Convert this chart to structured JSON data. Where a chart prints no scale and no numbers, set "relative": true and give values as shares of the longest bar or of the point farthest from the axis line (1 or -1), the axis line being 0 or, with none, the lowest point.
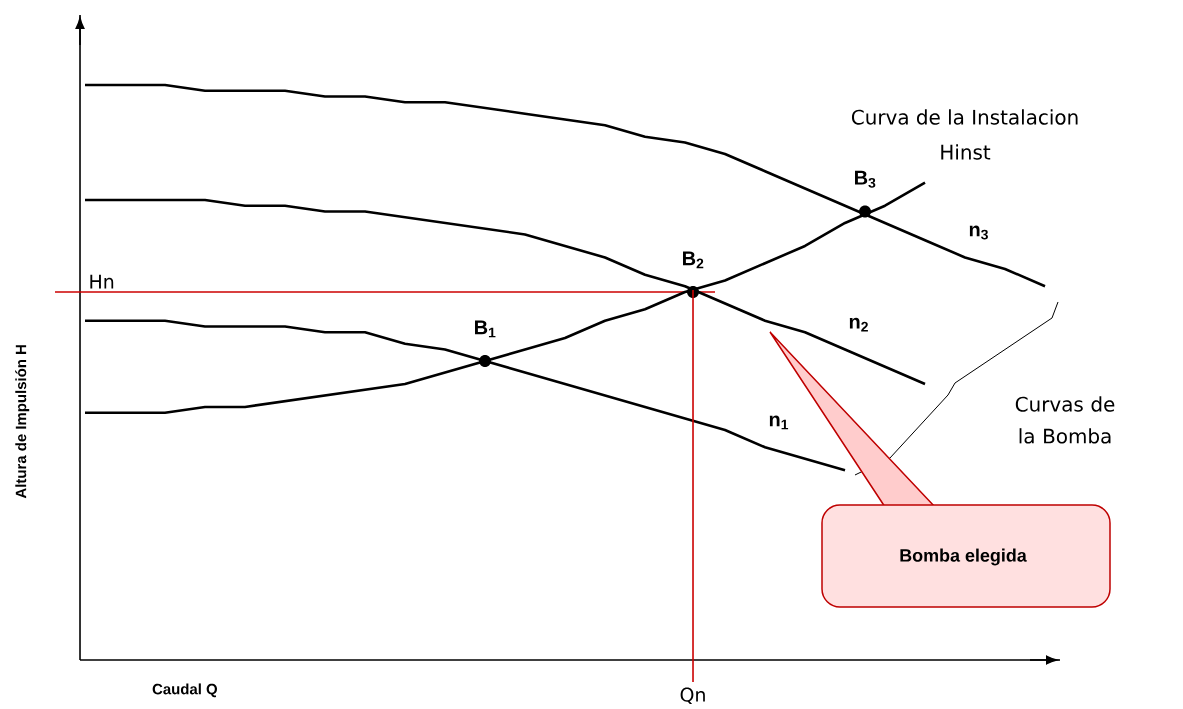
{
  "chart_data": {
    "type": "line",
    "relative": true,
    "xlabel": "Caudal Q",
    "ylabel": "Altura de Impulsión H",
    "tick_labels": false,
    "categories": [
      null,
      null,
      null,
      null,
      null,
      null,
      null,
      null,
      null,
      null,
      null,
      null,
      null,
      null,
      null,
      null,
      null,
      null,
      null,
      null,
      null,
      null,
      null,
      null,
      null
    ],
    "series": [
      {
        "name": "n$_{1}$",
        "color": "#000000",
        "values": [
          0.59,
          0.59,
          0.59,
          0.58,
          0.58,
          0.58,
          0.57,
          0.57,
          0.55,
          0.54,
          0.52,
          0.5,
          0.48,
          0.46,
          0.44,
          0.42,
          0.4,
          0.37,
          0.35,
          0.33,
          null,
          null,
          null,
          null,
          null
        ]
      },
      {
        "name": "n$_{2}$",
        "color": "#000000",
        "values": [
          0.8,
          0.8,
          0.8,
          0.8,
          0.79,
          0.79,
          0.78,
          0.78,
          0.77,
          0.76,
          0.75,
          0.74,
          0.72,
          0.7,
          0.67,
          0.65,
          0.62,
          0.59,
          0.57,
          0.54,
          0.51,
          0.48,
          null,
          null,
          null
        ]
      },
      {
        "name": "n$_{3}$",
        "color": "#000000",
        "values": [
          1.0,
          1.0,
          1.0,
          0.99,
          0.99,
          0.99,
          0.98,
          0.98,
          0.97,
          0.97,
          0.96,
          0.95,
          0.94,
          0.93,
          0.91,
          0.9,
          0.88,
          0.85,
          0.82,
          0.79,
          0.76,
          0.73,
          0.7,
          0.68,
          0.65
        ]
      },
      {
        "color": "#000000",
        "values": [
          0.43,
          0.43,
          0.43,
          0.44,
          0.44,
          0.45,
          0.46,
          0.47,
          0.48,
          0.5,
          0.52,
          0.54,
          0.56,
          0.59,
          0.61,
          0.64,
          0.66,
          0.69,
          0.72,
          0.76,
          0.79,
          0.83,
          null,
          null,
          null
        ]
      }
    ],
    "ref_lines": [
      {
        "axis": "y",
        "value": 0.64,
        "label": "Hn",
        "color": "#cc0000"
      }
    ],
    "annotations": [
      "Curva de la Instalacion",
      "Hinst",
      "Curvas de la Bomba",
      "Bomba elegida",
      {
        "text": "B$_{1}$",
        "y": 0.52
      },
      {
        "text": "B$_{2}$",
        "y": 0.64
      },
      {
        "text": "B$_{3}$",
        "y": 0.78
      },
      "Qn"
    ]
  }
}
